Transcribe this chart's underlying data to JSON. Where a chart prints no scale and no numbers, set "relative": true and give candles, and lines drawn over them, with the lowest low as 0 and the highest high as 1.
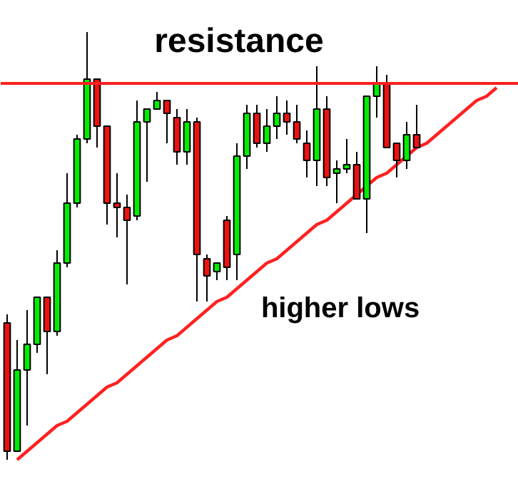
{
  "chart_data": {
    "type": "candlestick",
    "relative": true,
    "categories": [
      null,
      null,
      null,
      null,
      null,
      null,
      null,
      null,
      null,
      null,
      null,
      null,
      null,
      null,
      null,
      null,
      null,
      null,
      null,
      null,
      null,
      null,
      null,
      null,
      null,
      null,
      null,
      null,
      null,
      null,
      null,
      null,
      null,
      null,
      null,
      null,
      null,
      null,
      null,
      null,
      null,
      null,
      null,
      null,
      null,
      null,
      null,
      null,
      null,
      null
    ],
    "ohlc": [
      [
        0.32,
        0.34,
        0,
        0.02
      ],
      [
        0.02,
        0.28,
        0.02,
        0.21
      ],
      [
        0.21,
        0.35,
        0.08,
        0.27
      ],
      [
        0.27,
        0.38,
        0.25,
        0.38
      ],
      [
        0.38,
        0.38,
        0.2,
        0.3
      ],
      [
        0.3,
        0.49,
        0.29,
        0.46
      ],
      [
        0.46,
        0.67,
        0.45,
        0.6
      ],
      [
        0.6,
        0.76,
        0.59,
        0.75
      ],
      [
        0.75,
        1,
        0.74,
        0.89
      ],
      [
        0.89,
        0.89,
        0.73,
        0.78
      ],
      [
        0.78,
        0.78,
        0.55,
        0.6
      ],
      [
        0.6,
        0.67,
        0.52,
        0.59
      ],
      [
        0.59,
        0.62,
        0.41,
        0.56
      ],
      [
        0.57,
        0.84,
        0.56,
        0.79
      ],
      [
        0.79,
        0.82,
        0.65,
        0.82
      ],
      [
        0.82,
        0.86,
        0.82,
        0.84
      ],
      [
        0.84,
        0.84,
        0.74,
        0.81
      ],
      [
        0.8,
        0.82,
        0.69,
        0.72
      ],
      [
        0.72,
        0.82,
        0.69,
        0.79
      ],
      [
        0.79,
        0.8,
        0.37,
        0.48
      ],
      [
        0.47,
        0.48,
        0.37,
        0.43
      ],
      [
        0.44,
        0.46,
        0.42,
        0.46
      ],
      [
        0.56,
        0.57,
        0.42,
        0.45
      ],
      [
        0.48,
        0.74,
        0.42,
        0.71
      ],
      [
        0.71,
        0.83,
        0.68,
        0.81
      ],
      [
        0.81,
        0.83,
        0.73,
        0.74
      ],
      [
        0.74,
        0.82,
        0.72,
        0.78
      ],
      [
        0.78,
        0.85,
        0.75,
        0.81
      ],
      [
        0.81,
        0.84,
        0.76,
        0.79
      ],
      [
        0.79,
        0.83,
        0.74,
        0.75
      ],
      [
        0.74,
        0.77,
        0.66,
        0.7
      ],
      [
        0.7,
        0.92,
        0.64,
        0.82
      ],
      [
        0.82,
        0.85,
        0.64,
        0.66
      ],
      [
        0.67,
        0.7,
        0.6,
        0.68
      ],
      [
        0.68,
        0.75,
        0.67,
        0.69
      ],
      [
        0.69,
        0.72,
        0.61,
        0.61
      ],
      [
        0.61,
        0.85,
        0.53,
        0.85
      ],
      [
        0.85,
        0.92,
        0.8,
        0.88
      ],
      [
        0.88,
        0.9,
        0.73,
        0.73
      ],
      [
        0.74,
        0.74,
        0.66,
        0.7
      ],
      [
        0.7,
        0.79,
        0.68,
        0.76
      ],
      [
        0.76,
        0.83,
        0.73,
        0.73
      ],
      null,
      null,
      null,
      null,
      null,
      null,
      null,
      null
    ],
    "colors": [
      "#ee1111",
      "#00ee00",
      "#00ee00",
      "#00ee00",
      "#ee1111",
      "#00ee00",
      "#00ee00",
      "#00ee00",
      "#00ee00",
      "#ee1111",
      "#ee1111",
      "#ee1111",
      "#ee1111",
      "#00ee00",
      "#00ee00",
      "#00ee00",
      "#ee1111",
      "#ee1111",
      "#00ee00",
      "#ee1111",
      "#ee1111",
      "#00ee00",
      "#ee1111",
      "#00ee00",
      "#00ee00",
      "#ee1111",
      "#00ee00",
      "#00ee00",
      "#ee1111",
      "#ee1111",
      "#ee1111",
      "#00ee00",
      "#ee1111",
      "#00ee00",
      "#00ee00",
      "#ee1111",
      "#00ee00",
      "#00ee00",
      "#ee1111",
      "#ee1111",
      "#00ee00",
      "#ee1111",
      null,
      null,
      null,
      null,
      null,
      null,
      null,
      null
    ],
    "series": [
      {
        "type": "line",
        "color": "#ff2020",
        "values": [
          null,
          0.0,
          0.02,
          0.04,
          0.06,
          0.08,
          0.09,
          0.11,
          0.13,
          0.15,
          0.17,
          0.18,
          0.2,
          0.22,
          0.24,
          0.26,
          0.28,
          0.29,
          0.31,
          0.33,
          0.35,
          0.37,
          0.38,
          0.4,
          0.42,
          0.44,
          0.46,
          0.47,
          0.49,
          0.51,
          0.53,
          0.55,
          0.56,
          0.58,
          0.6,
          0.62,
          0.64,
          0.66,
          0.67,
          0.69,
          0.71,
          0.73,
          0.74,
          0.76,
          0.78,
          0.8,
          0.82,
          0.84,
          0.85,
          0.87
        ]
      }
    ],
    "ref_lines": [
      {
        "axis": "y",
        "value": 0.88,
        "label": "resistance",
        "color": "#ff2020"
      }
    ],
    "annotations": [
      "higher lows"
    ],
    "grid": false
  }
}
